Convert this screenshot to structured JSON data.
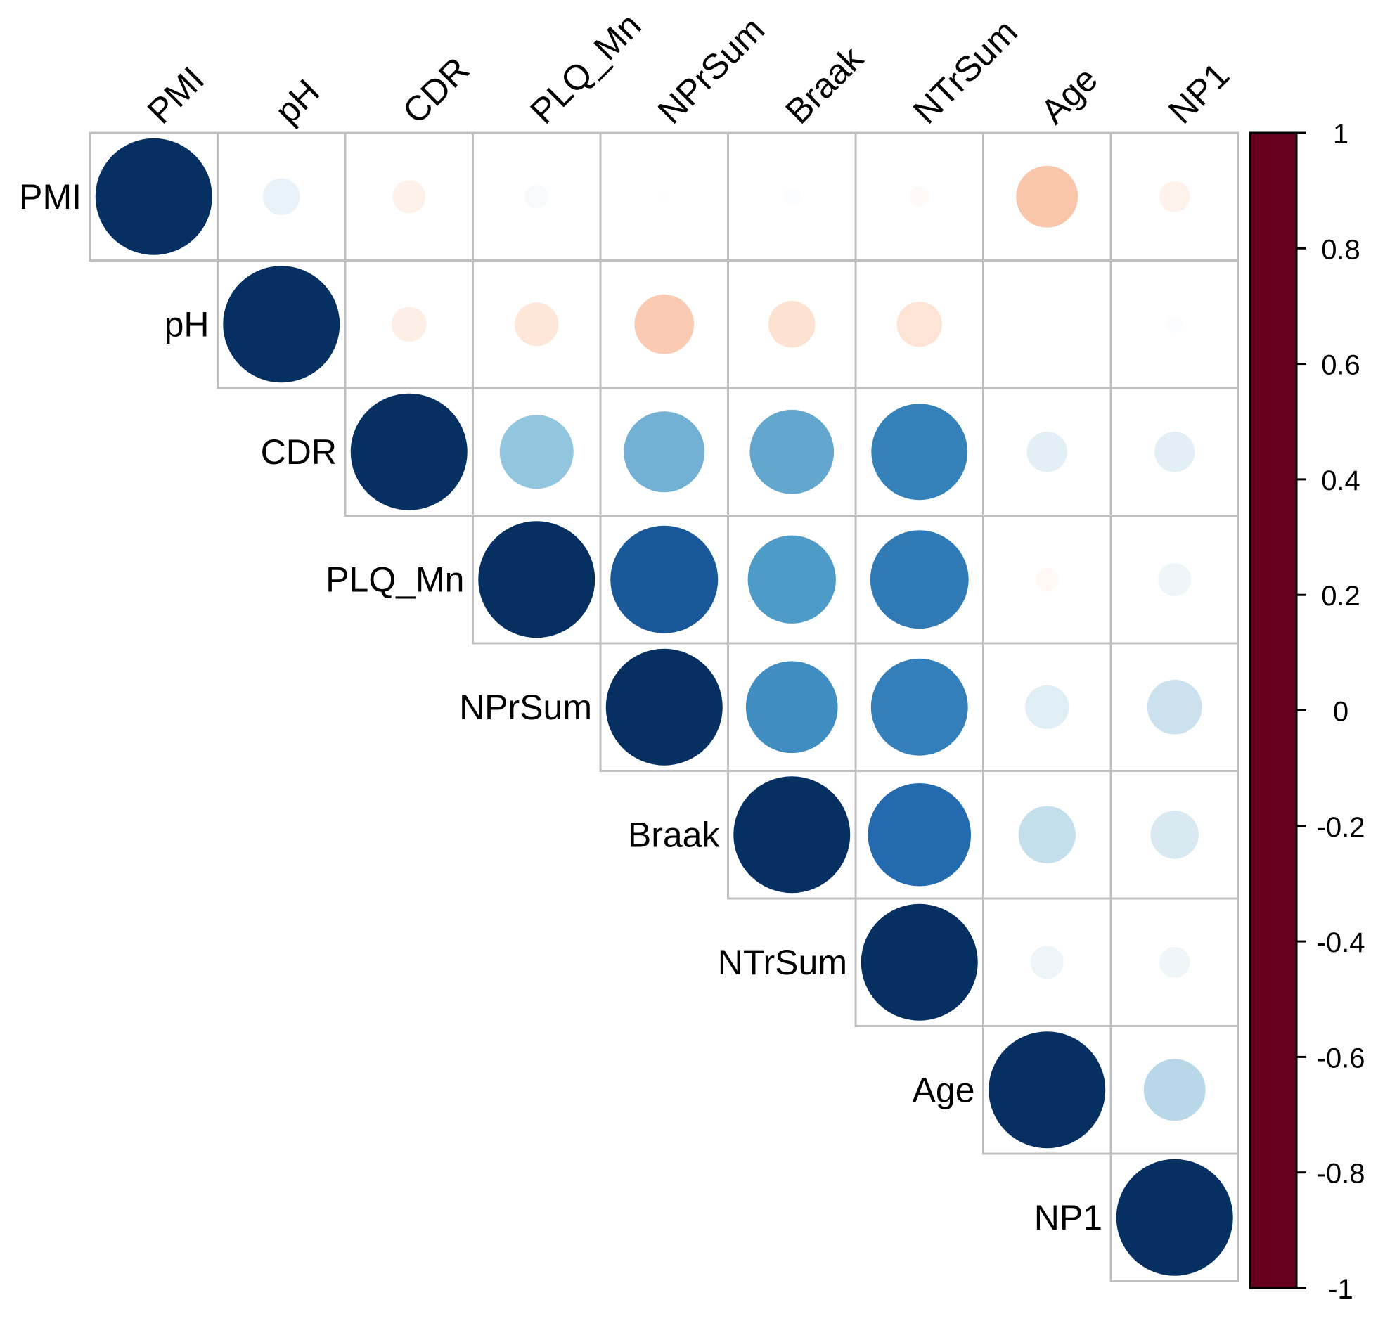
{
  "chart_data": {
    "type": "heatmap",
    "style": "corrplot-upper-circle",
    "variables": [
      "PMI",
      "pH",
      "CDR",
      "PLQ_Mn",
      "NPrSum",
      "Braak",
      "NTrSum",
      "Age",
      "NP1"
    ],
    "matrix": [
      [
        1.0,
        0.1,
        -0.08,
        0.04,
        0.01,
        0.02,
        -0.03,
        -0.28,
        -0.07
      ],
      [
        0.1,
        1.0,
        -0.09,
        -0.14,
        -0.26,
        -0.16,
        -0.15,
        0.0,
        0.02
      ],
      [
        -0.08,
        -0.09,
        1.0,
        0.4,
        0.48,
        0.52,
        0.68,
        0.12,
        0.12
      ],
      [
        0.04,
        -0.14,
        0.4,
        1.0,
        0.85,
        0.57,
        0.71,
        -0.04,
        0.08
      ],
      [
        0.01,
        -0.26,
        0.48,
        0.85,
        1.0,
        0.62,
        0.69,
        0.14,
        0.22
      ],
      [
        0.02,
        -0.16,
        0.52,
        0.57,
        0.62,
        1.0,
        0.78,
        0.24,
        0.17
      ],
      [
        -0.03,
        -0.15,
        0.68,
        0.71,
        0.69,
        0.78,
        1.0,
        0.08,
        0.07
      ],
      [
        -0.28,
        0.0,
        0.12,
        -0.04,
        0.14,
        0.24,
        0.08,
        1.0,
        0.28
      ],
      [
        -0.07,
        0.02,
        0.12,
        0.08,
        0.22,
        0.17,
        0.07,
        0.28,
        1.0
      ]
    ],
    "colorbar": {
      "range": [
        -1,
        1
      ],
      "ticks": [
        "1",
        "0.8",
        "0.6",
        "0.4",
        "0.2",
        "0",
        "-0.2",
        "-0.4",
        "-0.6",
        "-0.8",
        "-1"
      ],
      "tick_values": [
        1,
        0.8,
        0.6,
        0.4,
        0.2,
        0,
        -0.2,
        -0.4,
        -0.6,
        -0.8,
        -1
      ],
      "colors": [
        "#67001F",
        "#B2182B",
        "#D6604D",
        "#F4A582",
        "#FDDBC7",
        "#FFFFFF",
        "#D1E5F0",
        "#92C5DE",
        "#4393C3",
        "#2166AC",
        "#053061"
      ]
    },
    "legend_placement": "right",
    "grid": true
  }
}
